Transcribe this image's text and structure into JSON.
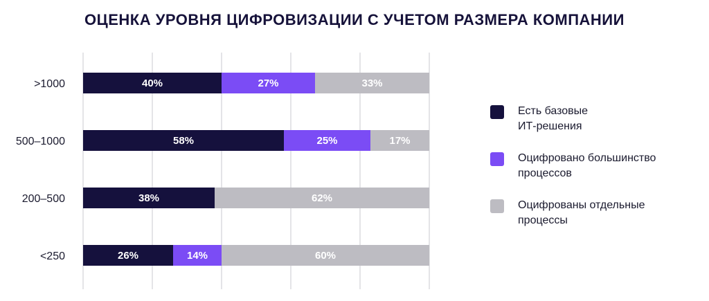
{
  "chart_data": {
    "type": "bar",
    "orientation": "horizontal",
    "stacked": true,
    "title": "ОЦЕНКА УРОВНЯ ЦИФРОВИЗАЦИИ С УЧЕТОМ РАЗМЕРА КОМПАНИИ",
    "categories": [
      ">1000",
      "500–1000",
      "200–500",
      "<250"
    ],
    "series": [
      {
        "name": "Есть базовые\nИТ-решения",
        "color": "#15113d",
        "values": [
          40,
          58,
          38,
          26
        ],
        "labels": [
          "40%",
          "58%",
          "38%",
          "26%"
        ]
      },
      {
        "name": "Оцифровано большинство\nпроцессов",
        "color": "#7b4cf5",
        "values": [
          27,
          25,
          0,
          14
        ],
        "labels": [
          "27%",
          "25%",
          "",
          "14%"
        ]
      },
      {
        "name": "Оцифрованы отдельные\nпроцессы",
        "color": "#bdbcc2",
        "values": [
          33,
          17,
          62,
          60
        ],
        "labels": [
          "33%",
          "17%",
          "62%",
          "60%"
        ]
      }
    ],
    "xlim": [
      0,
      100
    ],
    "gridlines_x": [
      0,
      20,
      40,
      60,
      80,
      100
    ],
    "grid": true,
    "legend": "right"
  }
}
